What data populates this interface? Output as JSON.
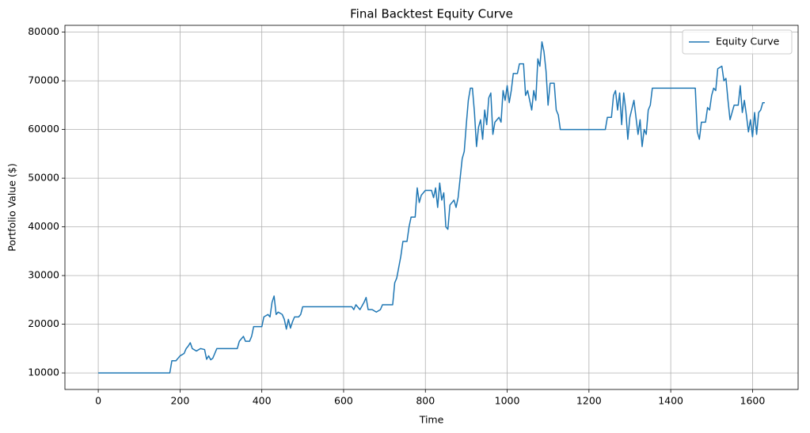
{
  "chart_data": {
    "type": "line",
    "title": "Final Backtest Equity Curve",
    "x_label": "Time",
    "y_label": "Portfolio Value ($)",
    "x": [
      0,
      175,
      180,
      190,
      200,
      210,
      215,
      220,
      225,
      230,
      240,
      250,
      260,
      265,
      270,
      275,
      280,
      285,
      290,
      340,
      345,
      350,
      355,
      360,
      370,
      375,
      380,
      400,
      405,
      415,
      420,
      425,
      430,
      435,
      440,
      450,
      455,
      460,
      465,
      470,
      475,
      480,
      490,
      495,
      500,
      620,
      625,
      630,
      640,
      650,
      655,
      660,
      670,
      680,
      690,
      695,
      720,
      725,
      730,
      740,
      745,
      755,
      760,
      765,
      775,
      780,
      785,
      790,
      800,
      815,
      820,
      825,
      830,
      835,
      840,
      845,
      850,
      855,
      860,
      870,
      875,
      880,
      885,
      890,
      895,
      900,
      905,
      910,
      915,
      920,
      925,
      930,
      935,
      940,
      945,
      950,
      955,
      960,
      965,
      970,
      980,
      985,
      990,
      995,
      1000,
      1005,
      1010,
      1015,
      1025,
      1030,
      1040,
      1045,
      1050,
      1055,
      1060,
      1065,
      1070,
      1075,
      1080,
      1085,
      1090,
      1095,
      1100,
      1105,
      1115,
      1120,
      1125,
      1130,
      1240,
      1245,
      1255,
      1260,
      1265,
      1270,
      1275,
      1280,
      1285,
      1290,
      1295,
      1300,
      1310,
      1320,
      1325,
      1330,
      1335,
      1340,
      1345,
      1350,
      1355,
      1460,
      1465,
      1470,
      1475,
      1485,
      1490,
      1495,
      1500,
      1505,
      1510,
      1515,
      1525,
      1530,
      1535,
      1540,
      1545,
      1550,
      1555,
      1565,
      1570,
      1575,
      1580,
      1585,
      1590,
      1595,
      1600,
      1605,
      1610,
      1615,
      1620,
      1625,
      1630
    ],
    "series": [
      {
        "name": "Equity Curve",
        "color": "#1f77b4",
        "values": [
          10000,
          10000,
          12500,
          12500,
          13500,
          14000,
          15000,
          15500,
          16200,
          15000,
          14500,
          15000,
          14800,
          12800,
          13500,
          12700,
          13000,
          14000,
          15000,
          15000,
          16500,
          17000,
          17500,
          16500,
          16500,
          17500,
          19500,
          19500,
          21500,
          22000,
          21500,
          24500,
          25800,
          22000,
          22500,
          22000,
          21000,
          19000,
          21000,
          19200,
          20500,
          21500,
          21500,
          22000,
          23600,
          23600,
          23000,
          24000,
          23000,
          24500,
          25500,
          23000,
          23000,
          22500,
          23000,
          24000,
          24000,
          28500,
          29500,
          34000,
          37000,
          37000,
          40000,
          42000,
          42000,
          48000,
          45000,
          46500,
          47500,
          47500,
          46000,
          48000,
          44000,
          49000,
          45500,
          47000,
          40000,
          39500,
          44500,
          45500,
          44000,
          46000,
          50000,
          54000,
          55500,
          61000,
          66000,
          68500,
          68500,
          63500,
          56500,
          60500,
          62000,
          58000,
          64000,
          61000,
          66500,
          67500,
          59000,
          61500,
          62500,
          61500,
          68000,
          66000,
          69000,
          65500,
          68000,
          71500,
          71500,
          73500,
          73500,
          67000,
          68000,
          66000,
          64000,
          68000,
          66000,
          74500,
          73000,
          78000,
          76000,
          72000,
          65000,
          69500,
          69500,
          64000,
          63000,
          60000,
          60000,
          62500,
          62500,
          67000,
          68000,
          64000,
          67500,
          61000,
          67500,
          64000,
          58000,
          62500,
          66000,
          59000,
          62000,
          56500,
          60000,
          59000,
          64000,
          65000,
          68500,
          68500,
          59500,
          58000,
          61500,
          61500,
          64500,
          64000,
          67000,
          68500,
          68000,
          72500,
          73000,
          70000,
          70500,
          66000,
          62000,
          63500,
          65000,
          65000,
          69000,
          63500,
          66000,
          63000,
          59500,
          62000,
          58500,
          63500,
          59000,
          63500,
          64000,
          65500,
          65500
        ]
      }
    ],
    "xlim": [
      -81.5,
      1711.5
    ],
    "xticks": [
      0,
      200,
      400,
      600,
      800,
      1000,
      1200,
      1400,
      1600
    ],
    "ylim": [
      6600,
      81400
    ],
    "yticks": [
      10000,
      20000,
      30000,
      40000,
      50000,
      60000,
      70000,
      80000
    ],
    "grid": true,
    "legend": "upper right"
  }
}
